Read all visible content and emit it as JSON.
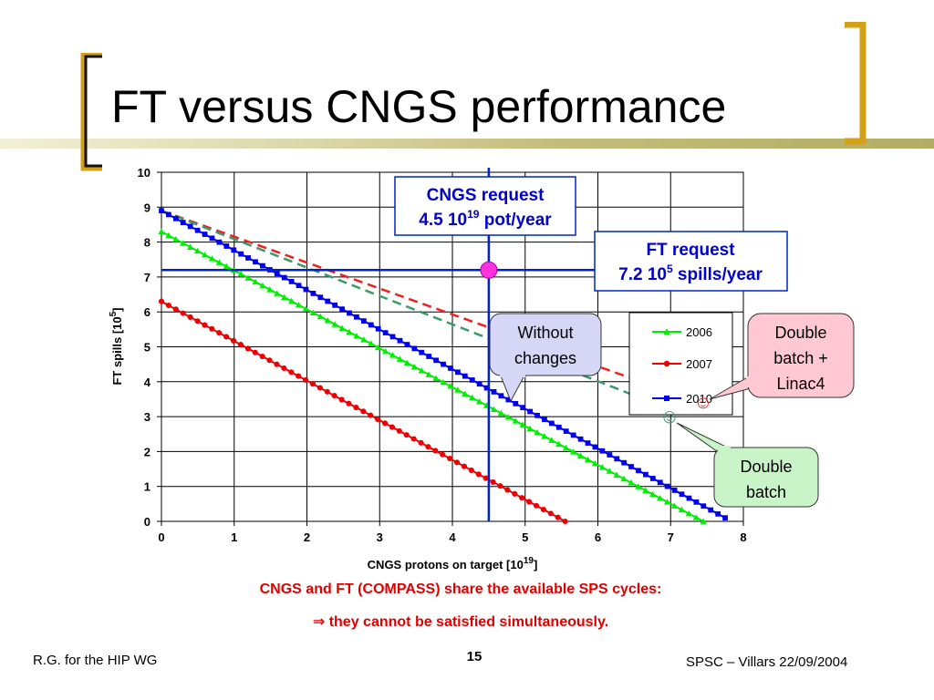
{
  "slide": {
    "title": "FT versus CNGS performance",
    "footer_left": "R.G. for the HIP WG",
    "page_number": "15",
    "footer_right": "SPSC – Villars 22/09/2004",
    "caption_line1": "CNGS and FT (COMPASS) share the available SPS cycles:",
    "caption_arrow": "⇒",
    "caption_line2": "they cannot be satisfied simultaneously."
  },
  "colors": {
    "bracket": "#d4a016",
    "series_2006": "#00ee00",
    "series_2007": "#ee0000",
    "series_2010": "#0000ee",
    "request_lines": "#0022cc",
    "dashed_red": "#ee2020",
    "dashed_green": "#3a9a6a",
    "caption": "#e00000",
    "bubble_fill_purple": "#d6d6f6",
    "bubble_fill_pink": "#ffc8d2",
    "bubble_fill_green": "#c8f4c8",
    "marker": "#ff33dd"
  },
  "chart_data": {
    "type": "line",
    "xlabel": "CNGS protons on target [10",
    "xlabel_sup": "19",
    "xlabel_end": "]",
    "ylabel": "FT spills [10",
    "ylabel_sup": "5",
    "ylabel_end": "]",
    "xlim": [
      0,
      8
    ],
    "ylim": [
      0,
      10
    ],
    "xticks": [
      "0",
      "1",
      "2",
      "3",
      "4",
      "5",
      "6",
      "7",
      "8"
    ],
    "yticks": [
      "0",
      "1",
      "2",
      "3",
      "4",
      "5",
      "6",
      "7",
      "8",
      "9",
      "10"
    ],
    "grid": true,
    "legend_position": "right",
    "series": [
      {
        "name": "2006",
        "marker": "triangle",
        "x": [
          0,
          7.45
        ],
        "y": [
          8.3,
          0
        ]
      },
      {
        "name": "2007",
        "marker": "circle",
        "x": [
          0,
          5.55
        ],
        "y": [
          6.3,
          0
        ]
      },
      {
        "name": "2010",
        "marker": "square",
        "x": [
          0,
          7.75
        ],
        "y": [
          8.9,
          0.1
        ]
      }
    ],
    "dashed_lines": [
      {
        "style": "red-dashed",
        "x": [
          0,
          7.4
        ],
        "y": [
          8.9,
          3.4
        ]
      },
      {
        "style": "green-dashed",
        "x": [
          0,
          7.0
        ],
        "y": [
          8.9,
          3.2
        ]
      }
    ],
    "requests": {
      "cngs_x": 4.5,
      "ft_y": 7.2,
      "cngs_label_line1": "CNGS request",
      "cngs_label_line2_a": "4.5 10",
      "cngs_label_line2_sup": "19",
      "cngs_label_line2_b": " pot/year",
      "ft_label_line1": "FT request",
      "ft_label_line2_a": "7.2 10",
      "ft_label_line2_sup": "5",
      "ft_label_line2_b": " spills/year"
    },
    "annotations": {
      "without_changes_line1": "Without",
      "without_changes_line2": "changes",
      "double_batch_linac4_line1": "Double",
      "double_batch_linac4_line2": "batch +",
      "double_batch_linac4_line3": "Linac4",
      "double_batch_line1": "Double",
      "double_batch_line2": "batch",
      "smiley": "☺"
    }
  }
}
